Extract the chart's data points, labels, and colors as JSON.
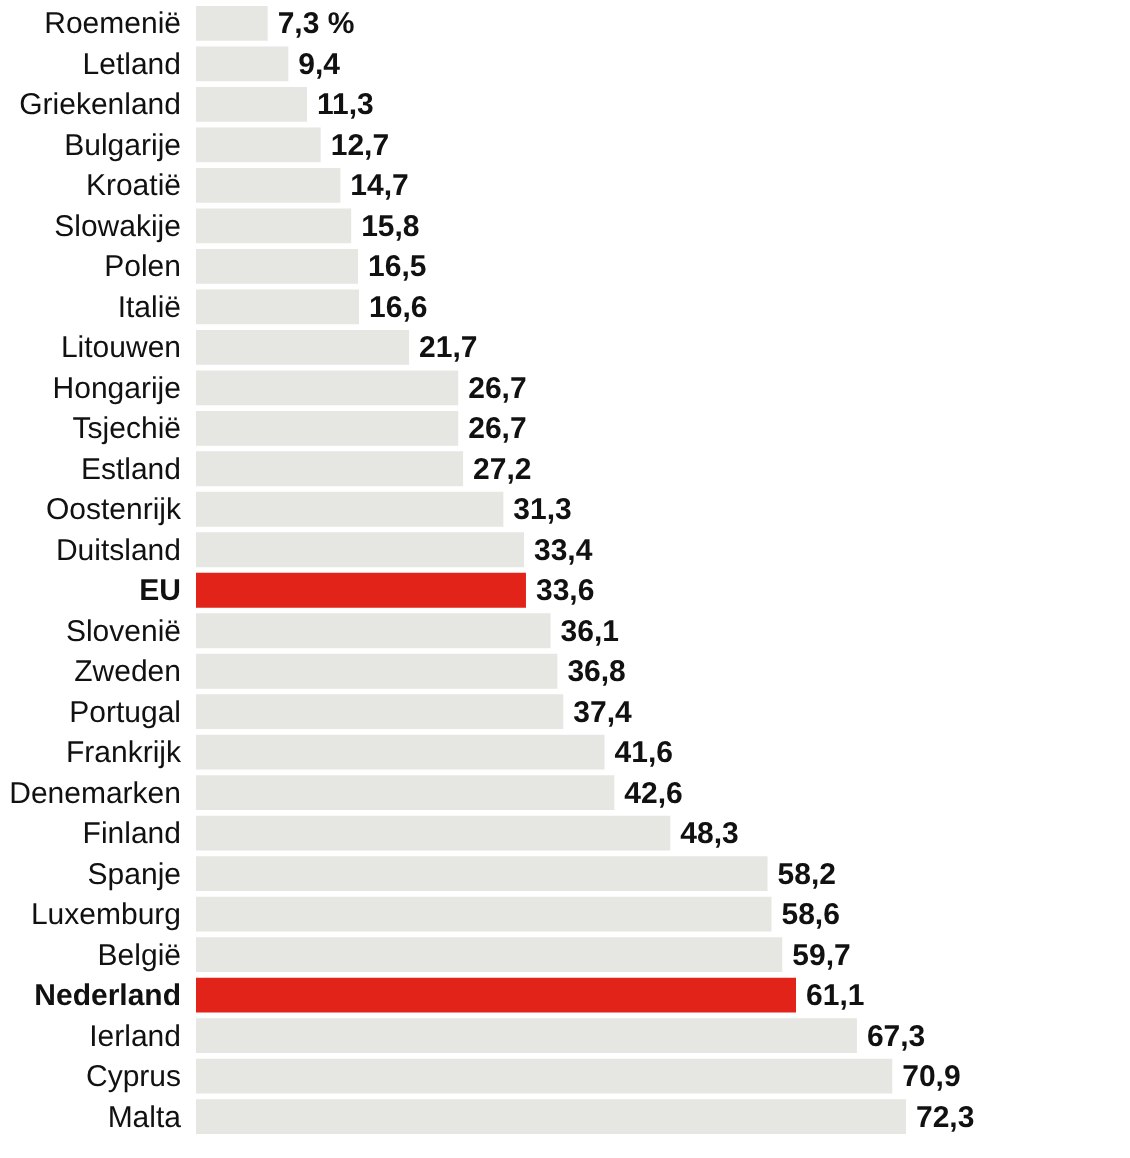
{
  "chart_data": {
    "type": "bar",
    "orientation": "horizontal",
    "legend": false,
    "categories": [
      "Roemenië",
      "Letland",
      "Griekenland",
      "Bulgarije",
      "Kroatië",
      "Slowakije",
      "Polen",
      "Italië",
      "Litouwen",
      "Hongarije",
      "Tsjechië",
      "Estland",
      "Oostenrijk",
      "Duitsland",
      "EU",
      "Slovenië",
      "Zweden",
      "Portugal",
      "Frankrijk",
      "Denemarken",
      "Finland",
      "Spanje",
      "Luxemburg",
      "België",
      "Nederland",
      "Ierland",
      "Cyprus",
      "Malta"
    ],
    "values": [
      7.3,
      9.4,
      11.3,
      12.7,
      14.7,
      15.8,
      16.5,
      16.6,
      21.7,
      26.7,
      26.7,
      27.2,
      31.3,
      33.4,
      33.6,
      36.1,
      36.8,
      37.4,
      41.6,
      42.6,
      48.3,
      58.2,
      58.6,
      59.7,
      61.1,
      67.3,
      70.9,
      72.3
    ],
    "value_labels": [
      "7,3 %",
      "9,4",
      "11,3",
      "12,7",
      "14,7",
      "15,8",
      "16,5",
      "16,6",
      "21,7",
      "26,7",
      "26,7",
      "27,2",
      "31,3",
      "33,4",
      "33,6",
      "36,1",
      "36,8",
      "37,4",
      "41,6",
      "42,6",
      "48,3",
      "58,2",
      "58,6",
      "59,7",
      "61,1",
      "67,3",
      "70,9",
      "72,3"
    ],
    "colors": [
      "#e6e6e2",
      "#e6e6e2",
      "#e6e6e2",
      "#e6e6e2",
      "#e6e6e2",
      "#e6e6e2",
      "#e6e6e2",
      "#e6e6e2",
      "#e6e6e2",
      "#e6e6e2",
      "#e6e6e2",
      "#e6e6e2",
      "#e6e6e2",
      "#e6e6e2",
      "#e2231a",
      "#e6e6e2",
      "#e6e6e2",
      "#e6e6e2",
      "#e6e6e2",
      "#e6e6e2",
      "#e6e6e2",
      "#e6e6e2",
      "#e6e6e2",
      "#e6e6e2",
      "#e2231a",
      "#e6e6e2",
      "#e6e6e2",
      "#e6e6e2"
    ]
  }
}
